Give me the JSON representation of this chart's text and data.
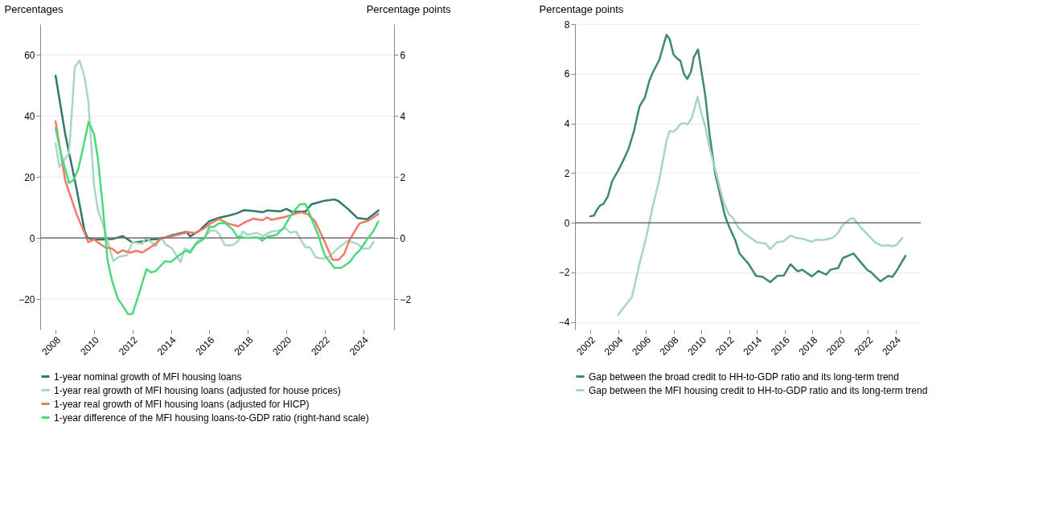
{
  "chart_data": [
    {
      "type": "line",
      "ylabel": "Percentages",
      "y2label": "Percentage points",
      "xlim": [
        2007.2,
        2025.6
      ],
      "xticks": [
        2008,
        2010,
        2012,
        2014,
        2016,
        2018,
        2020,
        2022,
        2024
      ],
      "ylim": [
        -30,
        70
      ],
      "yticks": [
        -20,
        0,
        20,
        40,
        60
      ],
      "y2lim": [
        -3,
        7
      ],
      "y2ticks": [
        -2,
        0,
        2,
        4,
        6
      ],
      "grid": "y",
      "legend": "bottom",
      "ref_lines": [
        {
          "axis": "y",
          "value": 0,
          "color": "#707070"
        }
      ],
      "series": [
        {
          "name": "1-year nominal growth of MFI housing loans",
          "color": "#2e7a64",
          "x": [
            2008.0,
            2008.5,
            2009.1,
            2009.5,
            2009.66,
            2010.0,
            2010.5,
            2011.0,
            2011.5,
            2012.0,
            2012.5,
            2013.0,
            2013.5,
            2014.0,
            2014.8,
            2015.0,
            2015.5,
            2016.0,
            2016.5,
            2017.0,
            2017.4,
            2017.8,
            2018.3,
            2018.76,
            2019.0,
            2019.7,
            2020.0,
            2020.3,
            2021.0,
            2021.3,
            2022.0,
            2022.5,
            2022.7,
            2023.2,
            2023.7,
            2024.2,
            2024.8
          ],
          "values": [
            53.1,
            34,
            15.8,
            2.5,
            0,
            -0.5,
            -0.5,
            -0.3,
            0.6,
            -1.5,
            -1.2,
            -0.5,
            -0.3,
            0.8,
            2,
            0.5,
            2.5,
            5.5,
            6.6,
            7.3,
            8,
            9.1,
            8.8,
            8.4,
            9.0,
            8.7,
            9.5,
            8.5,
            8.7,
            11,
            12.2,
            12.6,
            12.1,
            9.5,
            6.5,
            6.1,
            9.0
          ]
        },
        {
          "name": "1-year real growth of MFI housing loans (adjusted for house prices)",
          "color": "#a8d8c4",
          "x": [
            2008.0,
            2008.2,
            2008.7,
            2009.0,
            2009.24,
            2009.5,
            2009.7,
            2010.0,
            2010.2,
            2010.45,
            2011.0,
            2011.3,
            2011.7,
            2012.0,
            2012.5,
            2012.7,
            2013.2,
            2013.5,
            2013.7,
            2014.06,
            2014.5,
            2014.7,
            2015.0,
            2015.4,
            2015.75,
            2016.05,
            2016.3,
            2016.5,
            2016.8,
            2017.2,
            2017.5,
            2017.73,
            2017.98,
            2018.46,
            2018.76,
            2019.24,
            2019.6,
            2019.96,
            2020.2,
            2020.5,
            2021.0,
            2021.23,
            2021.53,
            2021.9,
            2022.25,
            2022.73,
            2023.2,
            2023.7,
            2024.0,
            2024.3,
            2024.54
          ],
          "values": [
            31,
            23.2,
            27.7,
            56,
            58.1,
            53,
            44.8,
            17.3,
            9.1,
            4.7,
            -7.6,
            -6.1,
            -5.7,
            -1.3,
            -2.0,
            0.2,
            -2.7,
            0.2,
            -2.0,
            -3.5,
            -7.9,
            -3.5,
            -4.2,
            -0.9,
            0.2,
            2.4,
            2.4,
            1.3,
            -2.4,
            -2.4,
            -1.0,
            2.1,
            1.0,
            1.7,
            0.6,
            2.1,
            2.4,
            3.2,
            1.7,
            2.1,
            -3.1,
            -3.1,
            -6.4,
            -6.8,
            -6.1,
            -3.1,
            -0.9,
            -2.0,
            -3.5,
            -3.5,
            -1.3
          ]
        },
        {
          "name": "1-year real growth of MFI housing loans (adjusted for HICP)",
          "color": "#f07a6a",
          "x": [
            2008.0,
            2008.5,
            2009.1,
            2009.5,
            2009.7,
            2010.0,
            2010.57,
            2010.93,
            2011.23,
            2011.47,
            2011.9,
            2012.2,
            2012.5,
            2013.1,
            2013.5,
            2014.06,
            2014.54,
            2014.9,
            2015.27,
            2015.75,
            2016.05,
            2016.5,
            2016.95,
            2017.5,
            2017.8,
            2018.28,
            2018.76,
            2019.0,
            2019.24,
            2019.96,
            2020.3,
            2020.75,
            2021.1,
            2021.5,
            2022.0,
            2022.4,
            2022.7,
            2023.0,
            2023.3,
            2023.8,
            2024.3,
            2024.78
          ],
          "values": [
            38.2,
            18.8,
            7.6,
            1.7,
            -1.4,
            -0.5,
            -3.1,
            -3.5,
            -5.0,
            -4.1,
            -4.8,
            -4.2,
            -4.8,
            -2.4,
            -0.1,
            0.6,
            1.3,
            1.9,
            1.6,
            3.2,
            4.7,
            6.2,
            4.7,
            3.8,
            5.0,
            6.3,
            5.8,
            6.7,
            5.9,
            6.9,
            7.6,
            8.4,
            7.8,
            5.4,
            -1.3,
            -7.2,
            -7.2,
            -5.3,
            -0.5,
            4.7,
            5.8,
            7.8
          ]
        },
        {
          "name": "1-year difference of the MFI housing loans-to-GDP ratio (right-hand scale)",
          "color": "#4cd97b",
          "axis": "y2",
          "x": [
            2008.0,
            2008.3,
            2008.7,
            2008.94,
            2009.18,
            2009.48,
            2009.72,
            2010.0,
            2010.2,
            2010.45,
            2010.7,
            2010.93,
            2011.23,
            2011.47,
            2011.77,
            2012.0,
            2012.37,
            2012.73,
            2012.97,
            2013.2,
            2013.7,
            2014.0,
            2014.42,
            2014.78,
            2015.0,
            2015.3,
            2015.75,
            2016.0,
            2016.23,
            2016.5,
            2016.83,
            2017.2,
            2017.43,
            2017.9,
            2018.5,
            2018.76,
            2019.0,
            2019.5,
            2019.84,
            2020.3,
            2020.7,
            2021.0,
            2021.3,
            2021.65,
            2022.0,
            2022.5,
            2022.85,
            2023.3,
            2023.6,
            2023.8,
            2024.2,
            2024.54,
            2024.78
          ],
          "values": [
            3.6,
            2.7,
            1.8,
            1.9,
            2.25,
            3.1,
            3.8,
            3.4,
            2.6,
            1.06,
            -0.72,
            -1.39,
            -1.98,
            -2.2,
            -2.5,
            -2.49,
            -1.76,
            -1.02,
            -1.13,
            -1.09,
            -0.76,
            -0.79,
            -0.57,
            -0.42,
            -0.48,
            -0.2,
            -0.01,
            0.36,
            0.36,
            0.48,
            0.48,
            0.28,
            0.06,
            0,
            0.02,
            -0.09,
            0.04,
            0.1,
            0.32,
            0.8,
            1.1,
            1.11,
            0.65,
            0.1,
            -0.57,
            -0.98,
            -0.98,
            -0.79,
            -0.53,
            -0.42,
            -0.05,
            0.24,
            0.54
          ]
        }
      ]
    },
    {
      "type": "line",
      "ylabel": "Percentage points",
      "xlim": [
        2000.9,
        2025.8
      ],
      "xticks": [
        2002,
        2004,
        2006,
        2008,
        2010,
        2012,
        2014,
        2016,
        2018,
        2020,
        2022,
        2024
      ],
      "ylim": [
        -4.3,
        8
      ],
      "yticks": [
        -4,
        -2,
        0,
        2,
        4,
        6,
        8
      ],
      "grid": "y",
      "legend": "bottom",
      "ref_lines": [
        {
          "axis": "y",
          "value": 0,
          "color": "#707070"
        }
      ],
      "series": [
        {
          "name": "Gap between the broad credit to HH-to-GDP ratio and its long-term trend",
          "color": "#3d8a70",
          "x": [
            2002.0,
            2002.27,
            2002.47,
            2002.7,
            2002.95,
            2003.26,
            2003.58,
            2004.0,
            2004.36,
            2004.76,
            2005.15,
            2005.55,
            2005.94,
            2006.26,
            2006.5,
            2006.97,
            2007.49,
            2007.72,
            2007.99,
            2008.23,
            2008.5,
            2008.74,
            2008.99,
            2009.26,
            2009.46,
            2009.76,
            2010.0,
            2010.28,
            2010.6,
            2010.99,
            2011.4,
            2011.7,
            2012.0,
            2012.44,
            2012.75,
            2013.38,
            2013.94,
            2014.41,
            2014.96,
            2015.47,
            2015.94,
            2016.42,
            2016.94,
            2017.25,
            2017.96,
            2018.44,
            2018.99,
            2019.3,
            2019.85,
            2020.2,
            2020.96,
            2021.43,
            2021.98,
            2022.2,
            2022.9,
            2023.45,
            2023.76,
            2024.08,
            2024.7
          ],
          "values": [
            0.26,
            0.29,
            0.51,
            0.69,
            0.76,
            1.05,
            1.68,
            2.09,
            2.49,
            2.98,
            3.7,
            4.69,
            5.05,
            5.73,
            6.04,
            6.56,
            7.57,
            7.39,
            6.78,
            6.63,
            6.51,
            6.0,
            5.79,
            6.09,
            6.67,
            6.98,
            6.13,
            5.14,
            3.52,
            2.0,
            1.0,
            0.29,
            -0.16,
            -0.7,
            -1.24,
            -1.64,
            -2.14,
            -2.18,
            -2.39,
            -2.14,
            -2.12,
            -1.67,
            -1.96,
            -1.89,
            -2.16,
            -1.94,
            -2.09,
            -1.89,
            -1.82,
            -1.42,
            -1.24,
            -1.56,
            -1.92,
            -1.98,
            -2.36,
            -2.14,
            -2.18,
            -1.92,
            -1.33
          ]
        },
        {
          "name": "Gap between the MFI housing credit to HH-to-GDP ratio and its long-term trend",
          "color": "#a6d6c2",
          "x": [
            2004.0,
            2005.0,
            2005.55,
            2006.02,
            2006.5,
            2006.97,
            2007.49,
            2007.72,
            2007.99,
            2008.23,
            2008.5,
            2008.7,
            2009.02,
            2009.33,
            2009.73,
            2010.0,
            2010.28,
            2010.6,
            2011.07,
            2011.55,
            2012.0,
            2012.28,
            2012.67,
            2013.23,
            2014.0,
            2014.64,
            2014.96,
            2015.43,
            2015.9,
            2016.45,
            2016.77,
            2017.4,
            2017.96,
            2018.26,
            2018.75,
            2019.45,
            2019.85,
            2020.13,
            2020.71,
            2020.95,
            2021.58,
            2022.2,
            2022.52,
            2023.0,
            2023.45,
            2023.76,
            2024.08,
            2024.47
          ],
          "values": [
            -3.71,
            -2.99,
            -1.64,
            -0.61,
            0.65,
            1.73,
            3.3,
            3.7,
            3.66,
            3.79,
            3.97,
            4.02,
            3.96,
            4.24,
            5.07,
            4.42,
            3.88,
            2.99,
            2.0,
            0.92,
            0.33,
            0.2,
            -0.21,
            -0.48,
            -0.79,
            -0.84,
            -1.06,
            -0.79,
            -0.75,
            -0.51,
            -0.6,
            -0.66,
            -0.77,
            -0.68,
            -0.7,
            -0.61,
            -0.41,
            -0.12,
            0.15,
            0.18,
            -0.25,
            -0.61,
            -0.79,
            -0.93,
            -0.9,
            -0.95,
            -0.88,
            -0.61
          ]
        }
      ]
    }
  ]
}
